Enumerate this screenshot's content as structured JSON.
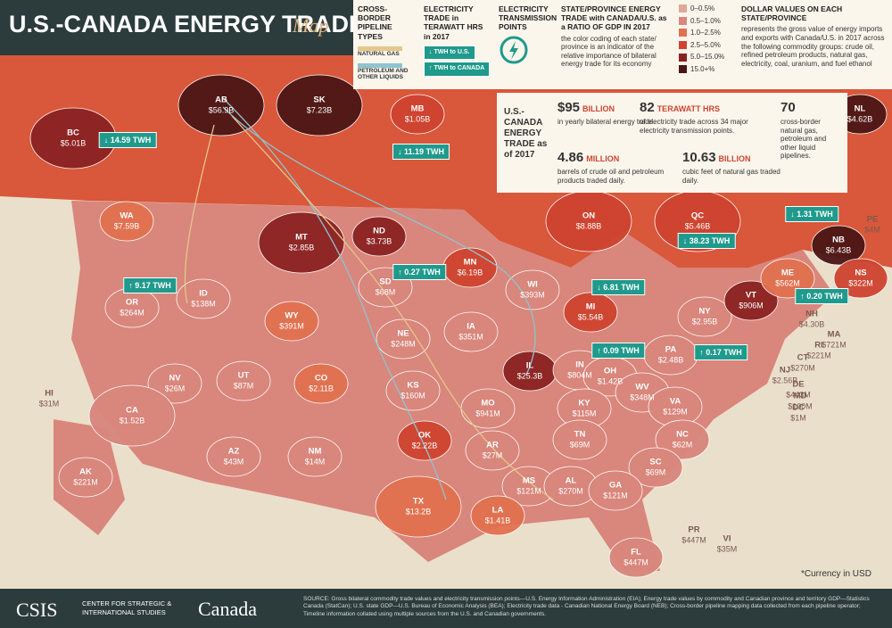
{
  "header": {
    "title": "U.S.-CANADA ENERGY TRADE",
    "subtitle": "Map"
  },
  "legend": {
    "pipelines": {
      "title": "CROSS-BORDER PIPELINE TYPES",
      "items": [
        {
          "label": "NATURAL GAS",
          "color": "#e3c88a"
        },
        {
          "label": "PETROLEUM AND OTHER LIQUIDS",
          "color": "#8fc3d1"
        }
      ]
    },
    "electricity": {
      "title": "ELECTRICITY TRADE in TERAWATT HRS in 2017",
      "to_us": "↓ TWH to U.S.",
      "to_canada": "↑ TWH to CANADA"
    },
    "transmission": {
      "title": "ELECTRICITY TRANSMISSION POINTS"
    },
    "ratio": {
      "title": "STATE/PROVINCE ENERGY TRADE with CANADA/U.S. as a RATIO OF GDP IN 2017",
      "text": "the color coding of each state/ province is an indicator of the relative importance of bilateral energy trade for its economy",
      "bins": [
        {
          "label": "0–0.5%",
          "color": "#e3a69c"
        },
        {
          "label": "0.5–1.0%",
          "color": "#d9867c"
        },
        {
          "label": "1.0–2.5%",
          "color": "#e2714f"
        },
        {
          "label": "2.5–5.0%",
          "color": "#cf4430"
        },
        {
          "label": "5.0–15.0%",
          "color": "#8a2222"
        },
        {
          "label": "15.0+%",
          "color": "#4b1616"
        }
      ]
    },
    "dollars": {
      "title": "DOLLAR VALUES ON EACH STATE/PROVINCE",
      "text": "represents the gross value of energy imports and exports with Canada/U.S. in 2017 across the following commodity groups: crude oil, refined petroleum products, natural gas, electricity, coal, uranium, and fuel ethanol"
    }
  },
  "stats": {
    "title": "U.S.-CANADA ENERGY TRADE as of 2017",
    "items": [
      {
        "amount": "$95",
        "unit": "BILLION",
        "text": "in yearly bilateral energy trade."
      },
      {
        "amount": "82",
        "unit": "TERAWATT HRS",
        "text": "of electricity trade across 34 major electricity transmission points."
      },
      {
        "amount": "70",
        "unit": "",
        "text": "cross-border natural gas, petroleum and other liquid pipelines."
      },
      {
        "amount": "4.86",
        "unit": "MILLION",
        "text": "barrels of crude oil and petroleum products traded daily."
      },
      {
        "amount": "10.63",
        "unit": "BILLION",
        "text": "cubic feet of natural gas traded daily."
      }
    ]
  },
  "regions": [
    {
      "name": "BC",
      "value": "$5.01B",
      "color": "#8a2222"
    },
    {
      "name": "AB",
      "value": "$56.9B",
      "color": "#4b1616"
    },
    {
      "name": "SK",
      "value": "$7.23B",
      "color": "#4b1616"
    },
    {
      "name": "MB",
      "value": "$1.05B",
      "color": "#cf4430"
    },
    {
      "name": "ON",
      "value": "$8.88B",
      "color": "#cf4430"
    },
    {
      "name": "QC",
      "value": "$5.46B",
      "color": "#cf4430"
    },
    {
      "name": "NL",
      "value": "$4.62B",
      "color": "#4b1616"
    },
    {
      "name": "NB",
      "value": "$6.43B",
      "color": "#4b1616"
    },
    {
      "name": "NS",
      "value": "$322M",
      "color": "#cf4430"
    },
    {
      "name": "PE",
      "value": "$4M",
      "color": "#e3a69c"
    },
    {
      "name": "WA",
      "value": "$7.59B",
      "color": "#e2714f"
    },
    {
      "name": "OR",
      "value": "$264M",
      "color": "#d9867c"
    },
    {
      "name": "ID",
      "value": "$138M",
      "color": "#d9867c"
    },
    {
      "name": "MT",
      "value": "$2.85B",
      "color": "#8a2222"
    },
    {
      "name": "ND",
      "value": "$3.73B",
      "color": "#8a2222"
    },
    {
      "name": "WY",
      "value": "$391M",
      "color": "#e2714f"
    },
    {
      "name": "SD",
      "value": "$68M",
      "color": "#d9867c"
    },
    {
      "name": "NE",
      "value": "$248M",
      "color": "#d9867c"
    },
    {
      "name": "MN",
      "value": "$6.19B",
      "color": "#cf4430"
    },
    {
      "name": "WI",
      "value": "$393M",
      "color": "#d9867c"
    },
    {
      "name": "IA",
      "value": "$351M",
      "color": "#d9867c"
    },
    {
      "name": "IL",
      "value": "$25.3B",
      "color": "#8a2222"
    },
    {
      "name": "MI",
      "value": "$5.54B",
      "color": "#cf4430"
    },
    {
      "name": "IN",
      "value": "$804M",
      "color": "#d9867c"
    },
    {
      "name": "OH",
      "value": "$1.42B",
      "color": "#d9867c"
    },
    {
      "name": "PA",
      "value": "$2.48B",
      "color": "#d9867c"
    },
    {
      "name": "NY",
      "value": "$2.95B",
      "color": "#d9867c"
    },
    {
      "name": "VT",
      "value": "$906M",
      "color": "#8a2222"
    },
    {
      "name": "ME",
      "value": "$562M",
      "color": "#e2714f"
    },
    {
      "name": "NH",
      "value": "$4.30B",
      "color": "#d9867c"
    },
    {
      "name": "MA",
      "value": "$721M",
      "color": "#d9867c"
    },
    {
      "name": "RI",
      "value": "$221M",
      "color": "#d9867c"
    },
    {
      "name": "CT",
      "value": "$270M",
      "color": "#d9867c"
    },
    {
      "name": "NJ",
      "value": "$2.56B",
      "color": "#d9867c"
    },
    {
      "name": "DE",
      "value": "$443M",
      "color": "#e2714f"
    },
    {
      "name": "MD",
      "value": "$100M",
      "color": "#d9867c"
    },
    {
      "name": "DC",
      "value": "$1M",
      "color": "#d9867c"
    },
    {
      "name": "NV",
      "value": "$26M",
      "color": "#d9867c"
    },
    {
      "name": "UT",
      "value": "$87M",
      "color": "#d9867c"
    },
    {
      "name": "CO",
      "value": "$2.11B",
      "color": "#e2714f"
    },
    {
      "name": "KS",
      "value": "$160M",
      "color": "#d9867c"
    },
    {
      "name": "MO",
      "value": "$941M",
      "color": "#d9867c"
    },
    {
      "name": "KY",
      "value": "$115M",
      "color": "#d9867c"
    },
    {
      "name": "WV",
      "value": "$348M",
      "color": "#d9867c"
    },
    {
      "name": "VA",
      "value": "$129M",
      "color": "#d9867c"
    },
    {
      "name": "CA",
      "value": "$1.52B",
      "color": "#d9867c"
    },
    {
      "name": "AZ",
      "value": "$43M",
      "color": "#d9867c"
    },
    {
      "name": "NM",
      "value": "$14M",
      "color": "#d9867c"
    },
    {
      "name": "OK",
      "value": "$2.22B",
      "color": "#cf4430"
    },
    {
      "name": "AR",
      "value": "$27M",
      "color": "#d9867c"
    },
    {
      "name": "TN",
      "value": "$69M",
      "color": "#d9867c"
    },
    {
      "name": "NC",
      "value": "$62M",
      "color": "#d9867c"
    },
    {
      "name": "SC",
      "value": "$69M",
      "color": "#d9867c"
    },
    {
      "name": "MS",
      "value": "$121M",
      "color": "#d9867c"
    },
    {
      "name": "AL",
      "value": "$270M",
      "color": "#d9867c"
    },
    {
      "name": "GA",
      "value": "$121M",
      "color": "#d9867c"
    },
    {
      "name": "TX",
      "value": "$13.2B",
      "color": "#e2714f"
    },
    {
      "name": "LA",
      "value": "$1.41B",
      "color": "#e2714f"
    },
    {
      "name": "FL",
      "value": "$447M",
      "color": "#d9867c"
    },
    {
      "name": "HI",
      "value": "$31M",
      "color": "#d9867c"
    },
    {
      "name": "AK",
      "value": "$221M",
      "color": "#d9867c"
    },
    {
      "name": "PR",
      "value": "$447M",
      "color": "#d9867c"
    },
    {
      "name": "VI",
      "value": "$35M",
      "color": "#d9867c"
    }
  ],
  "flows": [
    "↓ 14.59 TWH",
    "↓ 11.19 TWH",
    "↓ 1.31 TWH",
    "↓ 38.23 TWH",
    "↑ 9.17 TWH",
    "↑ 0.27 TWH",
    "↓ 6.81 TWH",
    "↑ 0.20 TWH",
    "↑ 0.09 TWH",
    "↑ 0.17 TWH"
  ],
  "note": "*Currency in USD",
  "footer": {
    "org": "CSIS",
    "org_name": "CENTER FOR STRATEGIC & INTERNATIONAL STUDIES",
    "partner": "Canada",
    "source": "SOURCE: Gross bilateral commodity trade values and electricity transmission points—U.S. Energy Information Administration (EIA); Energy trade values by commodity and Canadian province and territory GDP—Statistics Canada (StatCan); U.S. state GDP—U.S. Bureau of Economic Analysis (BEA); Electricity trade data - Canadian National Energy Board (NEB); Cross-border pipeline mapping data collected from each pipeline operator; Timeline information collated using multiple sources from the U.S. and Canadian governments."
  }
}
